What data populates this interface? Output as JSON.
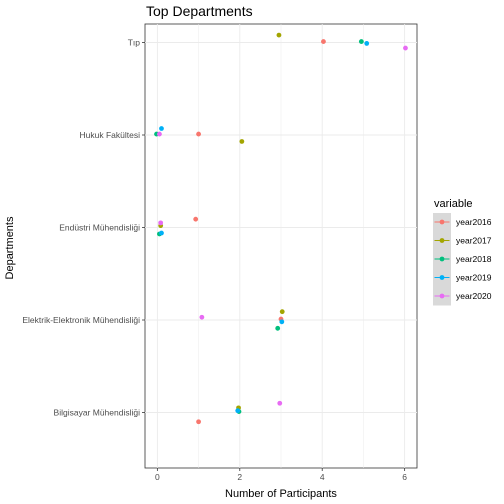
{
  "chart_data": {
    "type": "scatter",
    "title": "Top Departments",
    "xlabel": "Number of Participants",
    "ylabel": "Departments",
    "xlim": [
      -0.3,
      6.3
    ],
    "x_ticks": [
      0,
      2,
      4,
      6
    ],
    "categories": [
      "Bilgisayar Mühendisliği",
      "Elektrik-Elektronik Mühendisliği",
      "Endüstri Mühendisliği",
      "Hukuk Fakültesi",
      "Tıp"
    ],
    "grid": true,
    "legend": {
      "title": "variable",
      "position": "right"
    },
    "series": [
      {
        "name": "year2016",
        "color": "#F8766D",
        "points": [
          {
            "category": "Bilgisayar Mühendisliği",
            "x": 1,
            "jitter": -0.1
          },
          {
            "category": "Elektrik-Elektronik Mühendisliği",
            "x": 3,
            "jitter": 0.01
          },
          {
            "category": "Endüstri Mühendisliği",
            "x": 0.93,
            "jitter": 0.09
          },
          {
            "category": "Hukuk Fakültesi",
            "x": 1,
            "jitter": 0.01
          },
          {
            "category": "Tıp",
            "x": 4.03,
            "jitter": 0.01
          }
        ]
      },
      {
        "name": "year2017",
        "color": "#A3A500",
        "points": [
          {
            "category": "Bilgisayar Mühendisliği",
            "x": 1.97,
            "jitter": 0.05
          },
          {
            "category": "Elektrik-Elektronik Mühendisliği",
            "x": 3.03,
            "jitter": 0.09
          },
          {
            "category": "Endüstri Mühendisliği",
            "x": 0.08,
            "jitter": 0.02
          },
          {
            "category": "Hukuk Fakültesi",
            "x": 2.05,
            "jitter": -0.07
          },
          {
            "category": "Tıp",
            "x": 2.95,
            "jitter": 0.08
          }
        ]
      },
      {
        "name": "year2018",
        "color": "#00BF7D",
        "points": [
          {
            "category": "Bilgisayar Mühendisliği",
            "x": 1.98,
            "jitter": 0.01
          },
          {
            "category": "Elektrik-Elektronik Mühendisliği",
            "x": 2.92,
            "jitter": -0.09
          },
          {
            "category": "Endüstri Mühendisliği",
            "x": 0.05,
            "jitter": -0.07
          },
          {
            "category": "Hukuk Fakültesi",
            "x": -0.02,
            "jitter": 0.01
          },
          {
            "category": "Tıp",
            "x": 4.95,
            "jitter": 0.01
          }
        ]
      },
      {
        "name": "year2019",
        "color": "#00B0F6",
        "points": [
          {
            "category": "Bilgisayar Mühendisliği",
            "x": 1.95,
            "jitter": 0.02
          },
          {
            "category": "Elektrik-Elektronik Mühendisliği",
            "x": 3.02,
            "jitter": -0.02
          },
          {
            "category": "Endüstri Mühendisliği",
            "x": 0.1,
            "jitter": -0.06
          },
          {
            "category": "Hukuk Fakültesi",
            "x": 0.1,
            "jitter": 0.07
          },
          {
            "category": "Tıp",
            "x": 5.08,
            "jitter": -0.01
          }
        ]
      },
      {
        "name": "year2020",
        "color": "#E76BF3",
        "points": [
          {
            "category": "Bilgisayar Mühendisliği",
            "x": 2.97,
            "jitter": 0.1
          },
          {
            "category": "Elektrik-Elektronik Mühendisliği",
            "x": 1.08,
            "jitter": 0.03
          },
          {
            "category": "Endüstri Mühendisliği",
            "x": 0.08,
            "jitter": 0.05
          },
          {
            "category": "Hukuk Fakültesi",
            "x": 0.05,
            "jitter": 0.01
          },
          {
            "category": "Tıp",
            "x": 6.02,
            "jitter": -0.06
          }
        ]
      }
    ]
  }
}
